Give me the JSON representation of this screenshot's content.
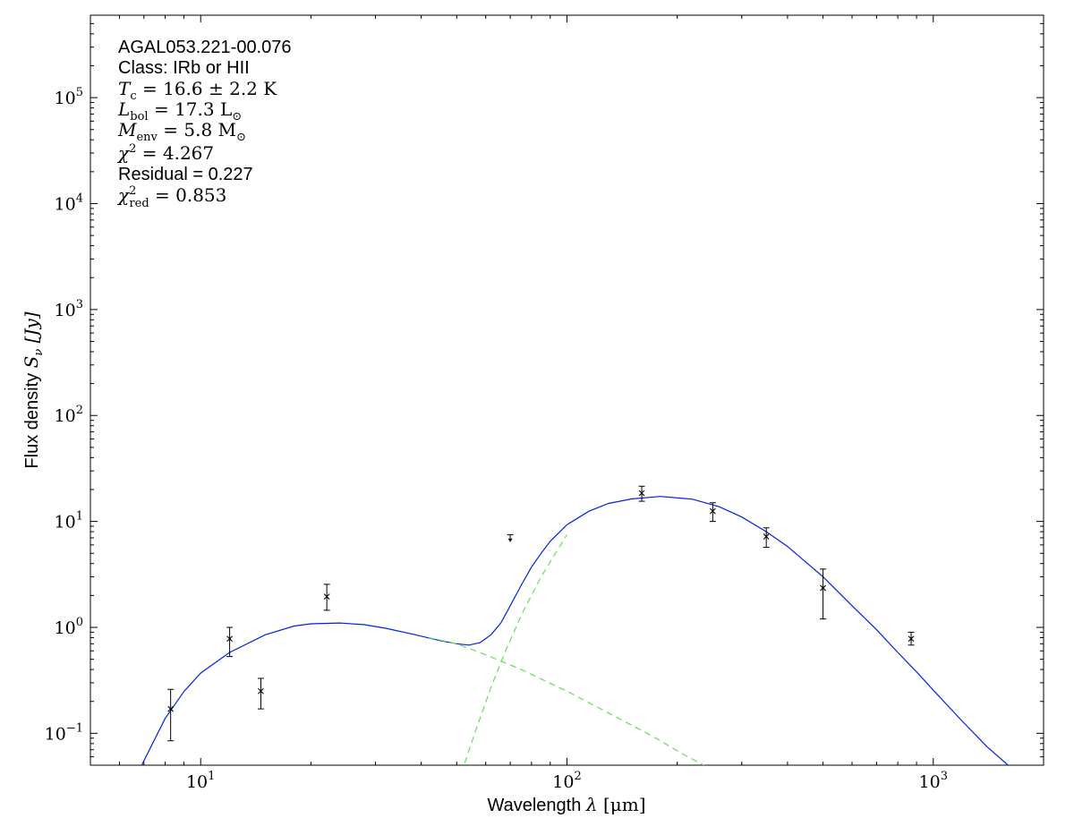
{
  "chart_data": {
    "type": "scatter",
    "title": "",
    "xlabel": {
      "text": "Wavelength ",
      "symbol": "λ",
      "unit": " [μm]"
    },
    "ylabel": {
      "text": "Flux density ",
      "symbol": "S",
      "sub": "ν",
      "unit": " [Jy]"
    },
    "x_scale": "log",
    "y_scale": "log",
    "xlim": [
      5,
      2000
    ],
    "ylim": [
      0.05,
      600000
    ],
    "x_ticks": [
      {
        "value": 10,
        "base": "10",
        "exp": "1"
      },
      {
        "value": 100,
        "base": "10",
        "exp": "2"
      },
      {
        "value": 1000,
        "base": "10",
        "exp": "3"
      }
    ],
    "y_ticks": [
      {
        "value": 0.1,
        "base": "10",
        "exp": "−1"
      },
      {
        "value": 1,
        "base": "10",
        "exp": "0"
      },
      {
        "value": 10,
        "base": "10",
        "exp": "1"
      },
      {
        "value": 100,
        "base": "10",
        "exp": "2"
      },
      {
        "value": 1000,
        "base": "10",
        "exp": "3"
      },
      {
        "value": 10000,
        "base": "10",
        "exp": "4"
      },
      {
        "value": 100000,
        "base": "10",
        "exp": "5"
      }
    ],
    "grid": false,
    "annotation": {
      "source": "AGAL053.221-00.076",
      "class": "Class: IRb or HII",
      "tc": {
        "sym": "T",
        "sub": "c",
        "value": " = 16.6 ± 2.2 K"
      },
      "lbol": {
        "sym": "L",
        "sub": "bol",
        "value": " = 17.3 L",
        "unit_sub": "⊙"
      },
      "menv": {
        "sym": "M",
        "sub": "env",
        "value": " = 5.8 M",
        "unit_sub": "⊙"
      },
      "chi2": {
        "sym": "χ",
        "sup": "2",
        "value": " = 4.267"
      },
      "residual": "Residual = 0.227",
      "chi2red": {
        "sym": "χ",
        "sup": "2",
        "sub": "red",
        "value": " = 0.853"
      }
    },
    "colors": {
      "model_total": "#0022dd",
      "model_components": "#66dd55",
      "points": "#000000"
    },
    "series": [
      {
        "kind": "points",
        "x": [
          8.28,
          12.0,
          14.6,
          22.1,
          160,
          250,
          350,
          500,
          870
        ],
        "y": [
          0.17,
          0.78,
          0.25,
          1.95,
          18.5,
          12.5,
          7.2,
          2.35,
          0.78
        ],
        "yerr_low": [
          0.085,
          0.53,
          0.17,
          1.45,
          15.5,
          10.0,
          5.7,
          1.2,
          0.68
        ],
        "yerr_high": [
          0.26,
          1.0,
          0.33,
          2.55,
          21.5,
          15.0,
          8.7,
          3.55,
          0.9
        ]
      },
      {
        "kind": "upper_limit",
        "x": [
          70
        ],
        "y": [
          7.5
        ],
        "y_arrow_tip": [
          6.5
        ]
      },
      {
        "kind": "line",
        "style": "solid",
        "x": [
          6.9,
          8.0,
          9.0,
          10,
          12,
          15,
          18,
          20,
          24,
          28,
          32,
          38,
          45,
          50,
          54,
          58,
          62,
          66,
          70,
          75,
          80,
          85,
          90,
          100,
          115,
          130,
          150,
          180,
          220,
          260,
          300,
          350,
          400,
          500,
          600,
          700,
          800,
          900,
          1000,
          1200,
          1400,
          1600,
          1800,
          1950
        ],
        "y": [
          0.05,
          0.138,
          0.248,
          0.37,
          0.58,
          0.85,
          1.03,
          1.08,
          1.1,
          1.06,
          0.98,
          0.86,
          0.75,
          0.7,
          0.68,
          0.72,
          0.85,
          1.1,
          1.6,
          2.5,
          3.7,
          5.0,
          6.5,
          9.3,
          12.5,
          14.8,
          16.3,
          17.2,
          16.2,
          13.8,
          11.0,
          8.0,
          5.8,
          3.0,
          1.6,
          0.95,
          0.58,
          0.38,
          0.255,
          0.13,
          0.075,
          0.05,
          0.04,
          0.035
        ]
      },
      {
        "kind": "line",
        "style": "dashed",
        "x": [
          42,
          50,
          60,
          75,
          100,
          130,
          170,
          210,
          250
        ],
        "y": [
          0.8,
          0.7,
          0.55,
          0.4,
          0.25,
          0.155,
          0.095,
          0.062,
          0.045
        ]
      },
      {
        "kind": "line",
        "style": "dashed",
        "x": [
          51.5,
          56,
          62,
          68,
          75,
          85,
          100
        ],
        "y": [
          0.042,
          0.1,
          0.27,
          0.6,
          1.3,
          3.0,
          7.5
        ]
      }
    ]
  }
}
